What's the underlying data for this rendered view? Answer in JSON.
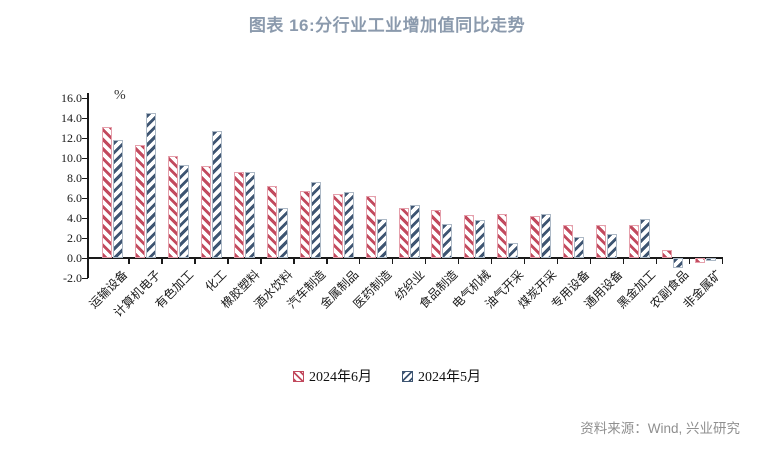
{
  "title": "图表 16:分行业工业增加值同比走势",
  "percent_label": "%",
  "legend": [
    "2024年6月",
    "2024年5月"
  ],
  "source": "资料来源：Wind, 兴业研究",
  "colors": {
    "title": "#8b9aad",
    "june_hatch": "#c24a5e",
    "june_border": "#e5a0ac",
    "may_hatch": "#3e5572",
    "may_border": "#adb9c6",
    "axis": "#1a1a1a",
    "source_text": "#8f8f8f"
  },
  "chart_data": {
    "type": "bar",
    "title": "图表 16:分行业工业增加值同比走势",
    "ylabel": "%",
    "ylim": [
      -2.0,
      16.0
    ],
    "ytick_step": 2.0,
    "y_ticks": [
      "16.0",
      "14.0",
      "12.0",
      "10.0",
      "8.0",
      "6.0",
      "4.0",
      "2.0",
      "0.0",
      "-2.0"
    ],
    "grid": false,
    "legend_position": "bottom",
    "categories": [
      "运输设备",
      "计算机电子",
      "有色加工",
      "化工",
      "橡胶塑料",
      "酒水饮料",
      "汽车制造",
      "金属制品",
      "医药制造",
      "纺织业",
      "食品制造",
      "电气机械",
      "油气开采",
      "煤炭开采",
      "专用设备",
      "通用设备",
      "黑金加工",
      "农副食品",
      "非金属矿"
    ],
    "series": [
      {
        "name": "2024年6月",
        "values": [
          13.1,
          11.3,
          10.2,
          9.2,
          8.6,
          7.2,
          6.7,
          6.4,
          6.2,
          5.0,
          4.8,
          4.3,
          4.4,
          4.2,
          3.3,
          3.3,
          3.3,
          0.8,
          -0.5
        ]
      },
      {
        "name": "2024年5月",
        "values": [
          11.8,
          14.5,
          9.3,
          12.7,
          8.6,
          5.0,
          7.6,
          6.6,
          3.9,
          5.3,
          3.4,
          3.8,
          1.5,
          4.4,
          2.1,
          2.4,
          3.9,
          -1.0,
          -0.3
        ]
      }
    ]
  }
}
